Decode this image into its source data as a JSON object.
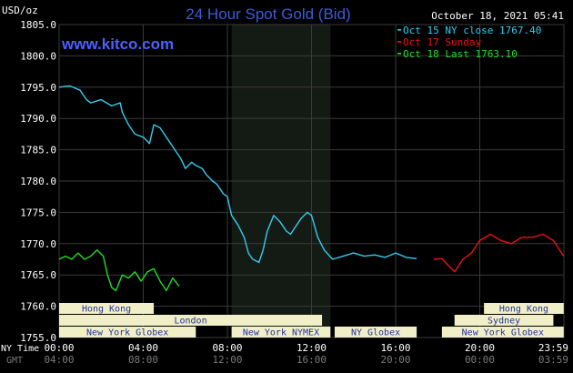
{
  "header": {
    "title": "24 Hour Spot Gold (Bid)",
    "unit": "USD/oz",
    "datetime": "October 18, 2021 05:41",
    "site": "www.kitco.com"
  },
  "colors": {
    "background": "#000000",
    "grid": "#3a3a3a",
    "title": "#3d5bd9",
    "site": "#4a62ff",
    "oct15": "#33ccee",
    "oct17": "#ee1111",
    "oct18": "#22dd22",
    "session_bg": "#141b14",
    "band_fill": "#f1efc8",
    "band_text": "#223399",
    "axis_text": "#ffffff",
    "gmt_text": "#7a7a7a"
  },
  "legend": [
    {
      "label": "Oct 15 NY close 1767.40",
      "color": "#33ccee"
    },
    {
      "label": "Oct 17 Sunday",
      "color": "#ee1111"
    },
    {
      "label": "Oct 18 Last 1763.10",
      "color": "#22dd22"
    }
  ],
  "axis": {
    "ny_time_label": "NY Time",
    "gmt_label": "GMT",
    "y_ticks": [
      "1805.0",
      "1800.0",
      "1795.0",
      "1790.0",
      "1785.0",
      "1780.0",
      "1775.0",
      "1770.0",
      "1765.0",
      "1760.0",
      "1755.0"
    ],
    "x_ticks_ny": [
      "00:00",
      "04:00",
      "08:00",
      "12:00",
      "16:00",
      "20:00",
      "23:59"
    ],
    "x_ticks_gmt": [
      "04:00",
      "08:00",
      "12:00",
      "16:00",
      "20:00",
      "00:00",
      "03:59"
    ]
  },
  "sessions": [
    {
      "label": "Hong Kong",
      "start": 0,
      "end": 4.5,
      "row": 0
    },
    {
      "label": "London",
      "start": 0,
      "end": 12.5,
      "row": 1
    },
    {
      "label": "New York Globex",
      "start": 0,
      "end": 6.5,
      "row": 2
    },
    {
      "label": "New York NYMEX",
      "start": 8.2,
      "end": 12.9,
      "row": 2
    },
    {
      "label": "NY Globex",
      "start": 13.1,
      "end": 17.0,
      "row": 2
    },
    {
      "label": "Hong Kong",
      "start": 20.2,
      "end": 23.99,
      "row": 0
    },
    {
      "label": "Sydney",
      "start": 18.8,
      "end": 23.5,
      "row": 1
    },
    {
      "label": "New York Globex",
      "start": 18.2,
      "end": 23.99,
      "row": 2
    }
  ],
  "chart_data": {
    "type": "line",
    "title": "24 Hour Spot Gold (Bid)",
    "ylabel": "USD/oz",
    "xlabel": "NY Time",
    "xlim": [
      0,
      24
    ],
    "ylim": [
      1755,
      1805
    ],
    "grid": true,
    "legend_position": "top-right",
    "highlight_region": {
      "start": 8.2,
      "end": 12.9
    },
    "series": [
      {
        "name": "Oct 15 NY close 1767.40",
        "color": "#33ccee",
        "x": [
          0,
          0.5,
          1.0,
          1.3,
          1.5,
          2.0,
          2.5,
          2.9,
          3.0,
          3.3,
          3.6,
          4.0,
          4.3,
          4.5,
          4.8,
          5.0,
          5.3,
          5.5,
          5.8,
          6.0,
          6.3,
          6.5,
          6.8,
          7.0,
          7.3,
          7.5,
          7.8,
          8.0,
          8.2,
          8.5,
          8.8,
          9.0,
          9.2,
          9.5,
          9.7,
          9.9,
          10.2,
          10.5,
          10.8,
          11.0,
          11.3,
          11.5,
          11.8,
          12.0,
          12.3,
          12.6,
          13.0,
          13.5,
          14.0,
          14.5,
          15.0,
          15.5,
          16.0,
          16.5,
          17.0
        ],
        "values": [
          1795.0,
          1795.2,
          1794.5,
          1793.0,
          1792.5,
          1793.0,
          1792.0,
          1792.5,
          1791.0,
          1789.0,
          1787.5,
          1787.0,
          1786.0,
          1789.0,
          1788.5,
          1787.5,
          1786.0,
          1785.0,
          1783.5,
          1782.0,
          1783.0,
          1782.5,
          1782.0,
          1781.0,
          1780.0,
          1779.5,
          1778.0,
          1777.5,
          1774.5,
          1773.0,
          1771.0,
          1768.5,
          1767.5,
          1767.0,
          1769.0,
          1772.0,
          1774.5,
          1773.5,
          1772.0,
          1771.5,
          1773.0,
          1774.0,
          1775.0,
          1774.5,
          1771.0,
          1769.0,
          1767.5,
          1768.0,
          1768.5,
          1768.0,
          1768.2,
          1767.8,
          1768.5,
          1767.8,
          1767.6
        ]
      },
      {
        "name": "Oct 17 Sunday",
        "color": "#ee1111",
        "x": [
          17.8,
          18.2,
          18.5,
          18.8,
          19.2,
          19.6,
          20.0,
          20.5,
          21.0,
          21.5,
          22.0,
          22.5,
          23.0,
          23.5,
          23.99
        ],
        "values": [
          1767.5,
          1767.6,
          1766.5,
          1765.5,
          1767.5,
          1768.5,
          1770.5,
          1771.5,
          1770.5,
          1770.0,
          1771.0,
          1771.0,
          1771.5,
          1770.5,
          1768.0
        ]
      },
      {
        "name": "Oct 18 Last 1763.10",
        "color": "#22dd22",
        "x": [
          0,
          0.3,
          0.6,
          0.9,
          1.2,
          1.5,
          1.8,
          2.1,
          2.3,
          2.5,
          2.7,
          3.0,
          3.3,
          3.6,
          3.9,
          4.2,
          4.5,
          4.8,
          5.1,
          5.4,
          5.7
        ],
        "values": [
          1767.5,
          1768.0,
          1767.5,
          1768.5,
          1767.5,
          1768.0,
          1769.0,
          1768.0,
          1765.0,
          1763.0,
          1762.5,
          1765.0,
          1764.5,
          1765.5,
          1764.0,
          1765.5,
          1766.0,
          1764.0,
          1762.5,
          1764.5,
          1763.2
        ]
      }
    ]
  }
}
